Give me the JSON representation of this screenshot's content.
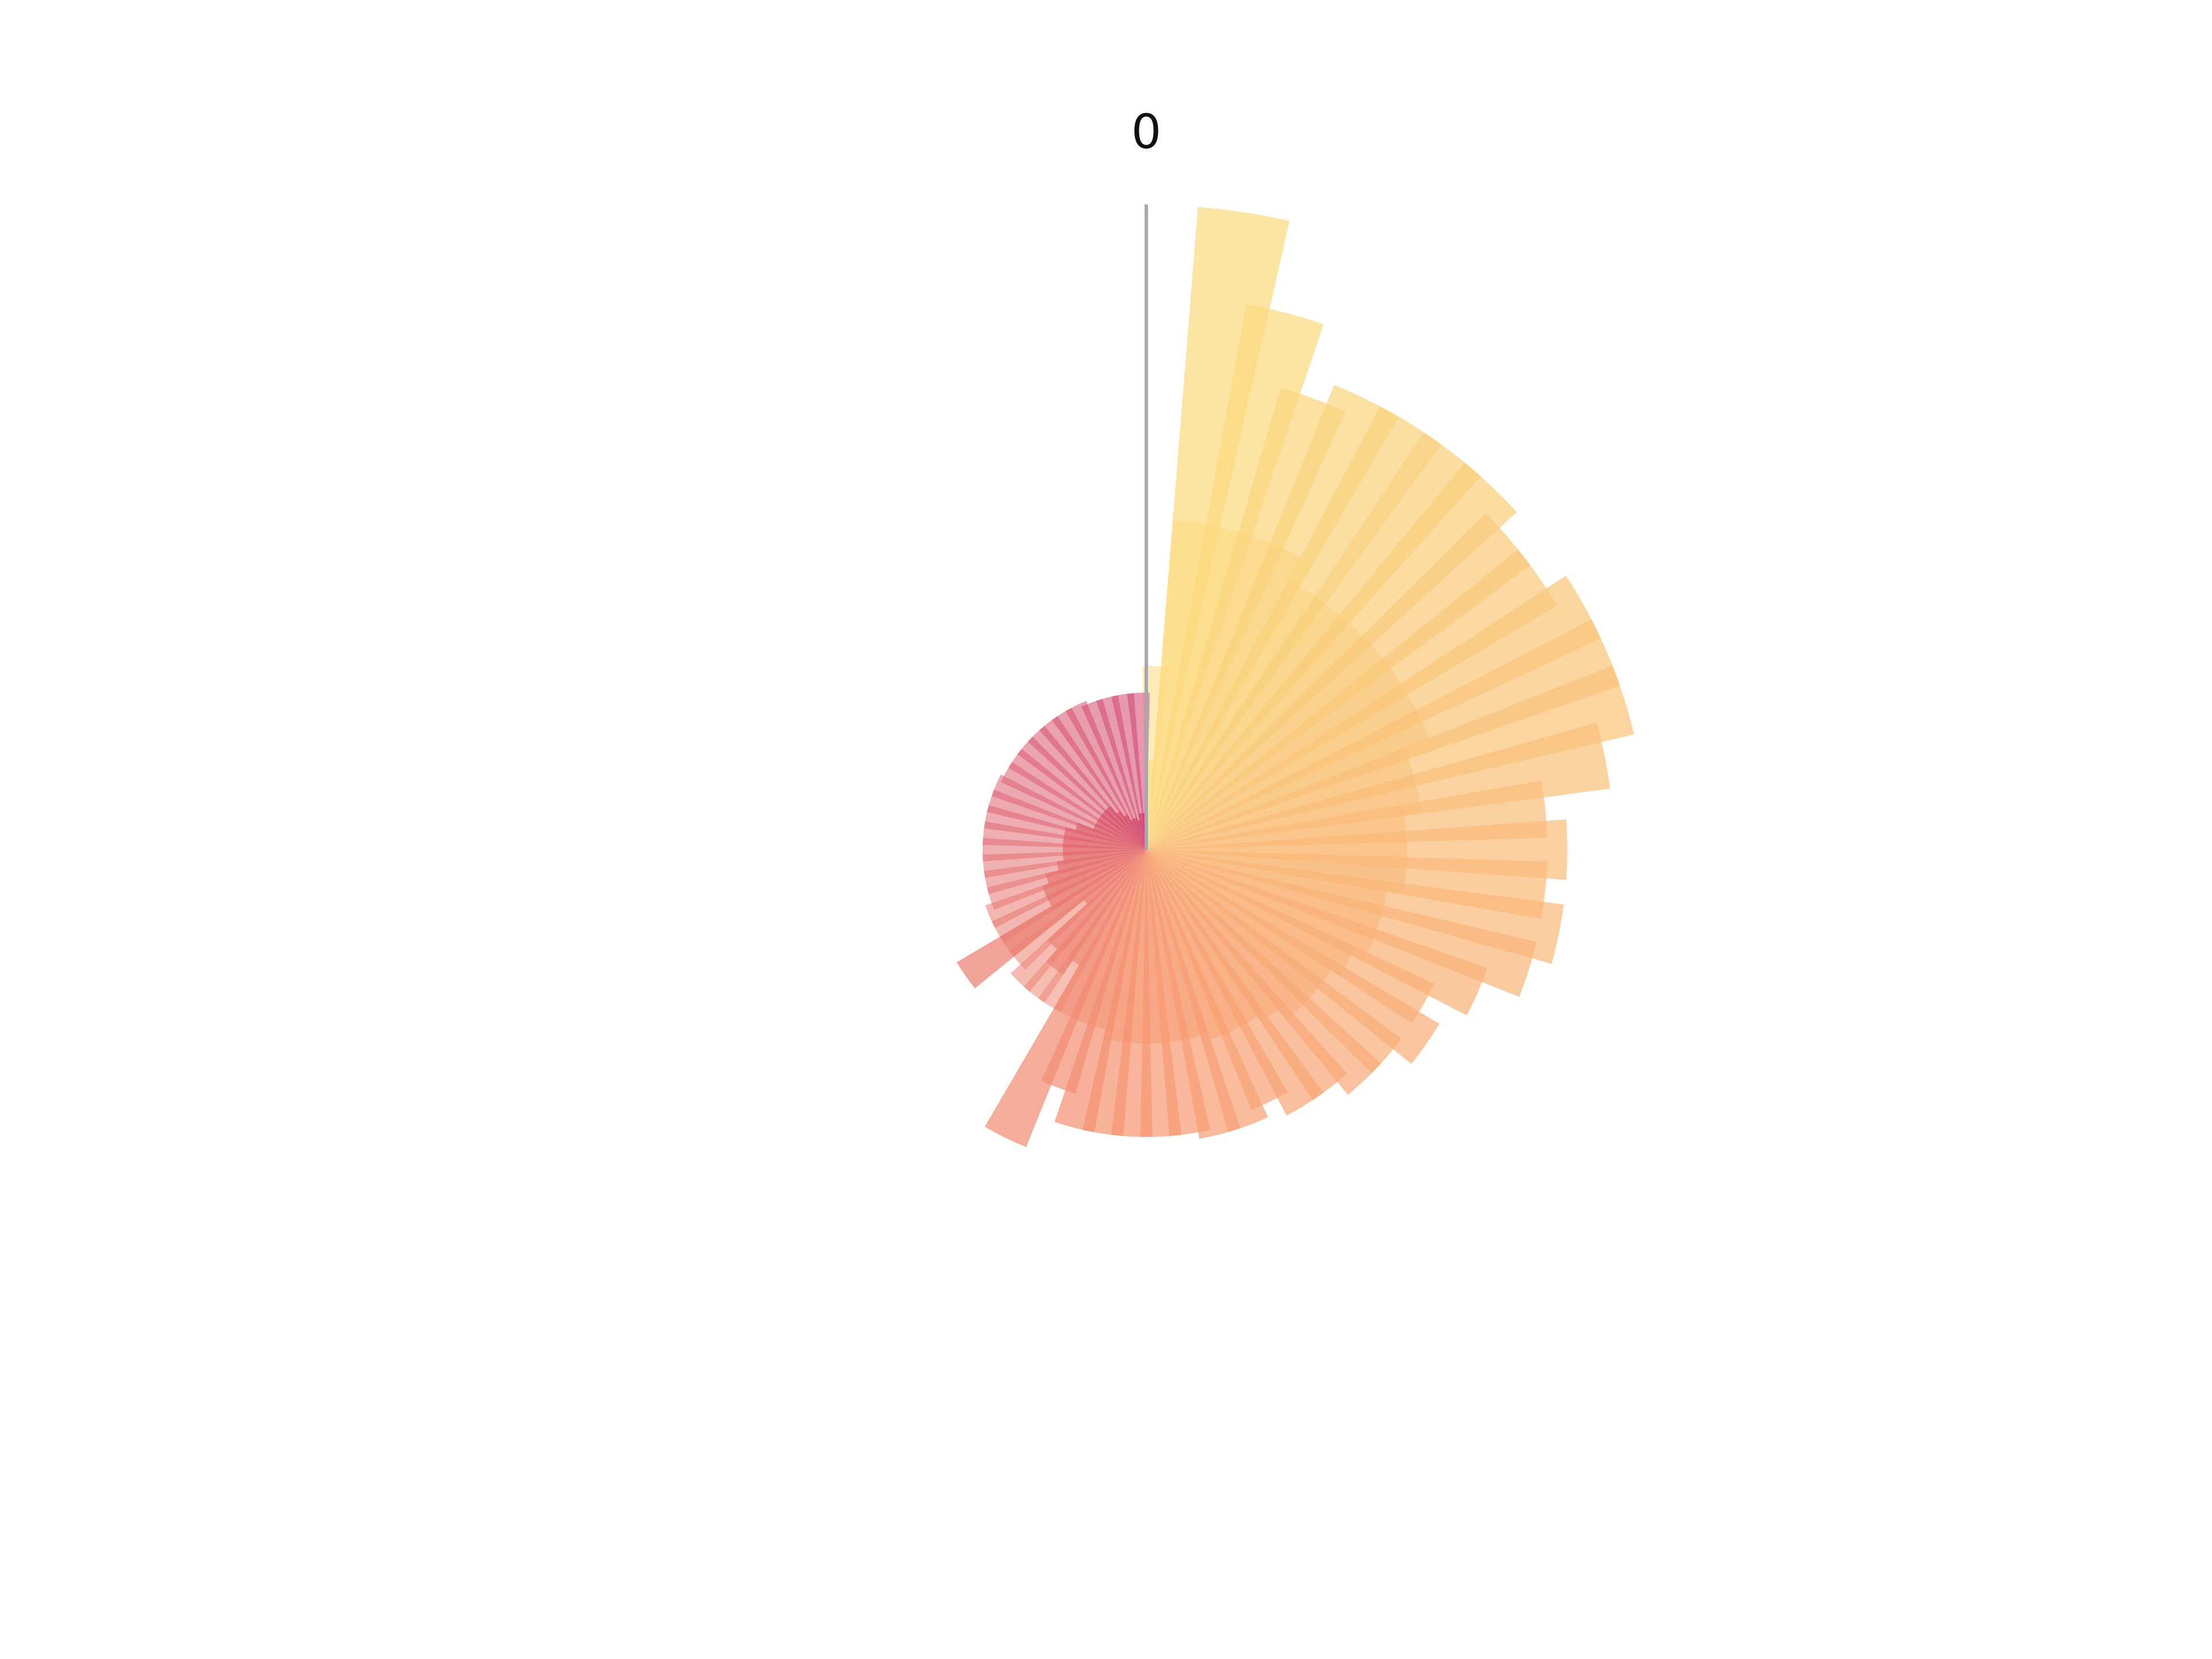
{
  "chart_data": {
    "type": "bar",
    "layout": "polar",
    "scale_label": "0",
    "series": [
      {
        "values": [
          27,
          193,
          166,
          144,
          150,
          150,
          150,
          150,
          143,
          143,
          150,
          150,
          150,
          140,
          120,
          126,
          120,
          126,
          120,
          108,
          95,
          102,
          95,
          95,
          90,
          90,
          84,
          88,
          88,
          86,
          86,
          86,
          86,
          86,
          76,
          96,
          40,
          45,
          40,
          24,
          66,
          33,
          33,
          31,
          27,
          25,
          25,
          25,
          25,
          22,
          17,
          17,
          17,
          17,
          17,
          14,
          12,
          10,
          10,
          9,
          11,
          11
        ]
      },
      {
        "values": [
          55,
          99,
          99,
          99,
          99,
          91,
          91,
          91,
          91,
          91,
          91,
          91,
          83,
          83,
          78,
          78,
          78,
          73,
          73,
          73,
          69,
          66,
          66,
          66,
          62,
          60,
          60,
          60,
          58,
          58,
          58,
          58,
          58,
          55,
          55,
          55,
          55,
          55,
          55,
          51,
          51,
          51,
          51,
          49,
          49,
          49,
          49,
          49,
          49,
          49,
          49,
          48,
          48,
          48,
          48,
          48,
          48,
          48,
          47,
          47,
          47,
          47
        ]
      }
    ],
    "colors": {
      "start": "#fbdd80",
      "mid": "#f79a75",
      "end": "#d0436f",
      "axis_line": "#a7a7ad"
    }
  }
}
